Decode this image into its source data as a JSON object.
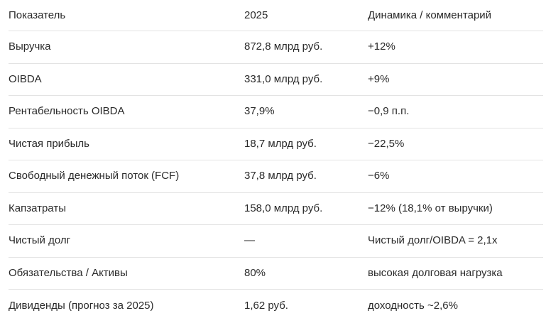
{
  "table": {
    "title": "financial-indicators-table",
    "header": {
      "indicator": "Показатель",
      "year": "2025",
      "dynamics": "Динамика / комментарий"
    },
    "rows": [
      {
        "indicator": "Выручка",
        "value": "872,8 млрд руб.",
        "comment": "+12%"
      },
      {
        "indicator": "OIBDA",
        "value": "331,0 млрд руб.",
        "comment": "+9%"
      },
      {
        "indicator": "Рентабельность OIBDA",
        "value": "37,9%",
        "comment": "−0,9 п.п."
      },
      {
        "indicator": "Чистая прибыль",
        "value": "18,7 млрд руб.",
        "comment": "−22,5%"
      },
      {
        "indicator": "Свободный денежный поток (FCF)",
        "value": "37,8 млрд руб.",
        "comment": "−6%"
      },
      {
        "indicator": "Капзатраты",
        "value": "158,0 млрд руб.",
        "comment": "−12% (18,1% от выручки)"
      },
      {
        "indicator": "Чистый долг",
        "value": "—",
        "comment": "Чистый долг/OIBDA = 2,1x"
      },
      {
        "indicator": "Обязательства / Активы",
        "value": "80%",
        "comment": "высокая долговая нагрузка"
      },
      {
        "indicator": "Дивиденды (прогноз за 2025)",
        "value": "1,62 руб.",
        "comment": "доходность ~2,6%"
      }
    ],
    "colors": {
      "text": "#2a2a2a",
      "divider": "#e3e3e3",
      "background": "#ffffff"
    }
  }
}
